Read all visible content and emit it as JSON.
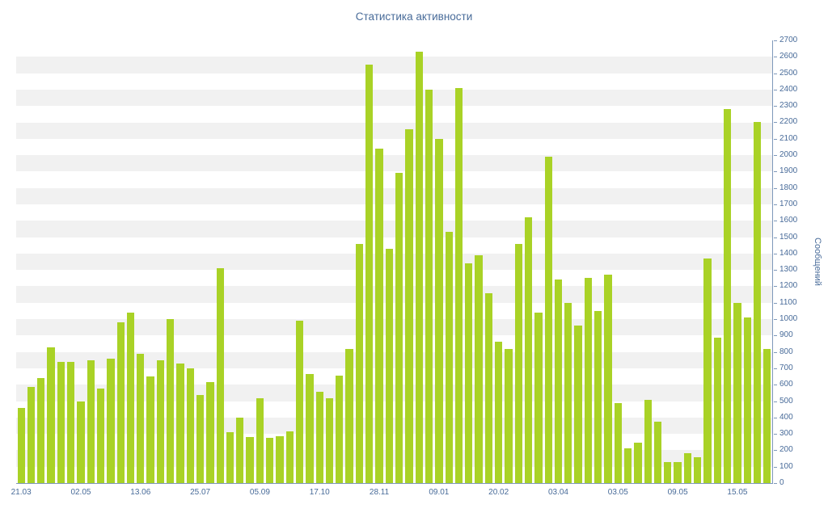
{
  "chart_data": {
    "type": "bar",
    "title": "Статистика активности",
    "xlabel": "",
    "ylabel": "Сообщений",
    "ylim": [
      0,
      2700
    ],
    "y_tick_step": 100,
    "grid": "alternating-horizontal-bands",
    "legend": "none",
    "bar_color": "#a9d226",
    "stripe_color": "#f1f1f1",
    "axis_color": "#7e98ba",
    "text_color": "#486b99",
    "x_tick_labels": [
      {
        "index": 0,
        "label": "21.03"
      },
      {
        "index": 6,
        "label": "02.05"
      },
      {
        "index": 12,
        "label": "13.06"
      },
      {
        "index": 18,
        "label": "25.07"
      },
      {
        "index": 24,
        "label": "05.09"
      },
      {
        "index": 30,
        "label": "17.10"
      },
      {
        "index": 36,
        "label": "28.11"
      },
      {
        "index": 42,
        "label": "09.01"
      },
      {
        "index": 48,
        "label": "20.02"
      },
      {
        "index": 54,
        "label": "03.04"
      },
      {
        "index": 60,
        "label": "03.05"
      },
      {
        "index": 66,
        "label": "09.05"
      },
      {
        "index": 72,
        "label": "15.05"
      }
    ],
    "values": [
      460,
      585,
      640,
      830,
      740,
      740,
      500,
      750,
      575,
      760,
      980,
      1040,
      790,
      650,
      750,
      1000,
      730,
      700,
      535,
      615,
      1310,
      310,
      400,
      280,
      515,
      275,
      285,
      315,
      990,
      665,
      555,
      515,
      655,
      820,
      1460,
      2550,
      2040,
      1430,
      1890,
      2160,
      2630,
      2400,
      2100,
      1530,
      2410,
      1340,
      1390,
      1160,
      860,
      820,
      1460,
      1620,
      1040,
      1990,
      1240,
      1100,
      960,
      1250,
      1050,
      1270,
      490,
      210,
      245,
      510,
      375,
      130,
      130,
      180,
      160,
      1370,
      885,
      2280,
      1100,
      1010,
      2200,
      820
    ]
  }
}
